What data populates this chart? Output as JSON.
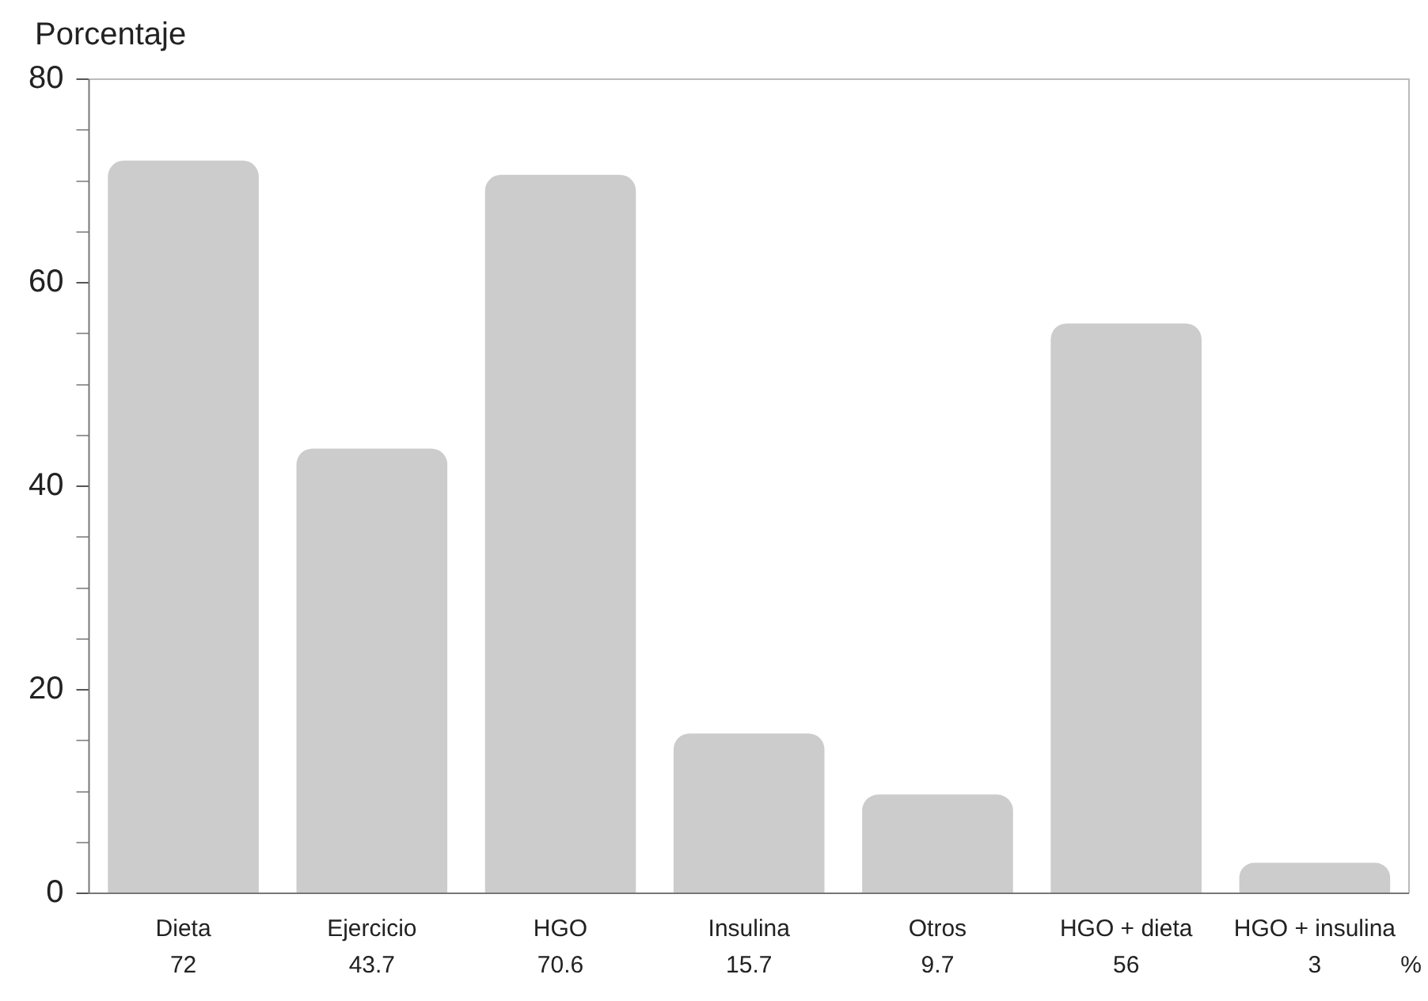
{
  "chart_data": {
    "type": "bar",
    "ylabel": "Porcentaje",
    "categories": [
      "Dieta",
      "Ejercicio",
      "HGO",
      "Insulina",
      "Otros",
      "HGO + dieta",
      "HGO + insulina"
    ],
    "values": [
      72,
      43.7,
      70.6,
      15.7,
      9.7,
      56,
      3
    ],
    "color": "#cccccc",
    "ylim": [
      0,
      80
    ],
    "yticks": [
      0,
      {
        "value": 5,
        "label": null
      },
      {
        "value": 10,
        "label": null
      },
      {
        "value": 15,
        "label": null
      },
      20,
      {
        "value": 25,
        "label": null
      },
      {
        "value": 30,
        "label": null
      },
      {
        "value": 35,
        "label": null
      },
      40,
      {
        "value": 45,
        "label": null
      },
      {
        "value": 50,
        "label": null
      },
      {
        "value": 55,
        "label": null
      },
      60,
      {
        "value": 65,
        "label": null
      },
      {
        "value": 70,
        "label": null
      },
      {
        "value": 75,
        "label": null
      },
      80
    ],
    "data_labels": true,
    "grid": false,
    "legend": false,
    "annotations": [
      "%"
    ]
  }
}
